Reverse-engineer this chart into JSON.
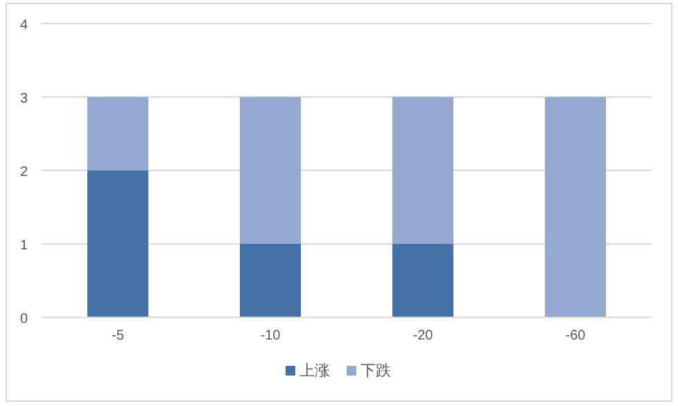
{
  "chart_data": {
    "type": "bar",
    "stacked": true,
    "categories": [
      "-5",
      "-10",
      "-20",
      "-60"
    ],
    "series": [
      {
        "name": "上涨",
        "color": "#4472a8",
        "values": [
          2,
          1,
          1,
          0
        ]
      },
      {
        "name": "下跌",
        "color": "#94a9cf",
        "values": [
          1,
          2,
          2,
          3
        ]
      }
    ],
    "ylim": [
      0,
      4
    ],
    "yticks": [
      0,
      1,
      2,
      3,
      4
    ],
    "grid": "y",
    "legend": "bottom"
  }
}
